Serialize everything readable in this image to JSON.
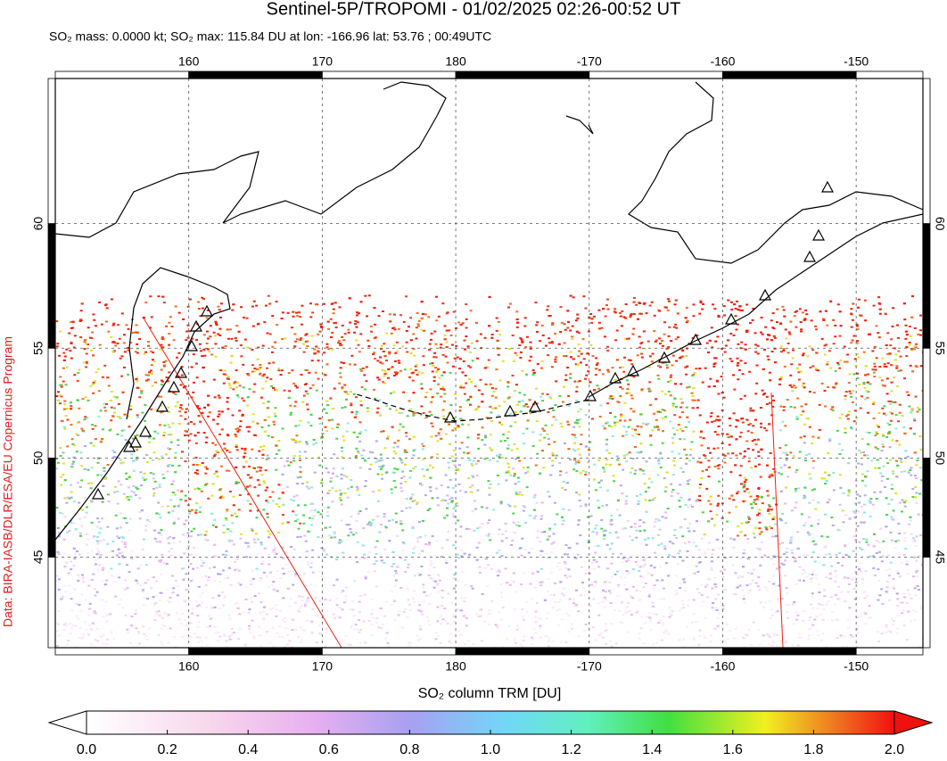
{
  "title": "Sentinel-5P/TROPOMI - 01/02/2025 02:26-00:52 UT",
  "subtitle": "SO₂ mass: 0.0000 kt; SO₂ max: 115.84 DU at lon: -166.96 lat: 53.76 ; 00:49UTC",
  "credit": "Data: BIRA-IASB/DLR/ESA/EU Copernicus Program",
  "map": {
    "lonlim": [
      150,
      -145
    ],
    "latlim": [
      40,
      65
    ],
    "lon_ticks": [
      160,
      170,
      180,
      -170,
      -160,
      -150
    ],
    "lat_ticks": [
      60,
      55,
      50,
      45
    ],
    "grid": true
  },
  "colorbar": {
    "label": "SO₂ column TRM [DU]",
    "lim": [
      0,
      2
    ],
    "ticks": [
      {
        "value": 0,
        "label": "0.0"
      },
      {
        "value": 0.2,
        "label": "0.2"
      },
      {
        "value": 0.4,
        "label": "0.4"
      },
      {
        "value": 0.6,
        "label": "0.6"
      },
      {
        "value": 0.8,
        "label": "0.8"
      },
      {
        "value": 1,
        "label": "1.0"
      },
      {
        "value": 1.2,
        "label": "1.2"
      },
      {
        "value": 1.4,
        "label": "1.4"
      },
      {
        "value": 1.6,
        "label": "1.6"
      },
      {
        "value": 1.8,
        "label": "1.8"
      },
      {
        "value": 2,
        "label": "2.0"
      }
    ]
  }
}
